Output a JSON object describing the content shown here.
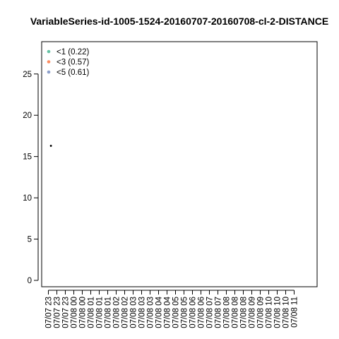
{
  "chart_data": {
    "type": "scatter",
    "title": "VariableSeries-id-1005-1524-20160707-20160708-cl-2-DISTANCE",
    "xlabel": "",
    "ylabel": "",
    "ylim": [
      0,
      28.5
    ],
    "yticks": [
      0,
      5,
      10,
      15,
      20,
      25
    ],
    "xtick_labels": [
      "07/07 23",
      "07/07 23",
      "07/07 23",
      "07/08 00",
      "07/08 00",
      "07/08 01",
      "07/08 01",
      "07/08 01",
      "07/08 02",
      "07/08 02",
      "07/08 03",
      "07/08 03",
      "07/08 03",
      "07/08 04",
      "07/08 04",
      "07/08 05",
      "07/08 05",
      "07/08 06",
      "07/08 06",
      "07/08 07",
      "07/08 07",
      "07/08 08",
      "07/08 08",
      "07/08 08",
      "07/08 09",
      "07/08 09",
      "07/08 10",
      "07/08 10",
      "07/08 10",
      "07/08 11"
    ],
    "legend": {
      "position": "top-left",
      "entries": [
        {
          "label": "<1 (0.22)",
          "color": "#66c2a5"
        },
        {
          "label": "<3 (0.57)",
          "color": "#fc8d62"
        },
        {
          "label": "<5 (0.61)",
          "color": "#8da0cb"
        }
      ]
    },
    "points": [
      {
        "x_index": 0.3,
        "y": 16.3,
        "color": "#000000"
      }
    ],
    "grid": false
  }
}
